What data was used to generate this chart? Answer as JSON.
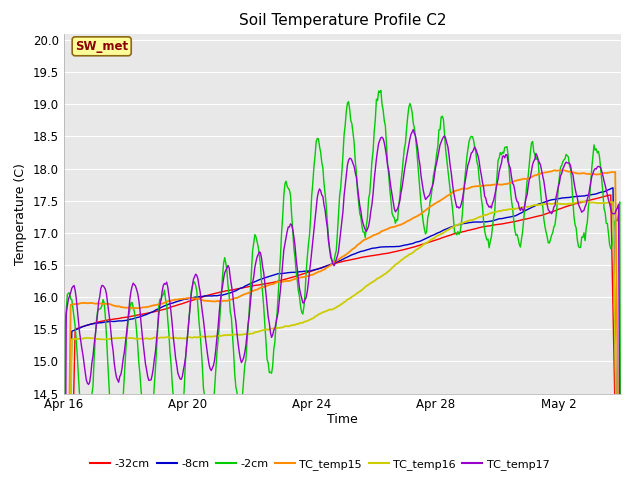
{
  "title": "Soil Temperature Profile C2",
  "xlabel": "Time",
  "ylabel": "Temperature (C)",
  "ylim": [
    14.5,
    20.1
  ],
  "xlim": [
    0,
    18
  ],
  "annotation": "SW_met",
  "annotation_color": "#8B0000",
  "annotation_bg": "#FFFF99",
  "annotation_edge": "#8B6914",
  "fig_bg": "#FFFFFF",
  "plot_bg": "#E8E8E8",
  "grid_color": "#FFFFFF",
  "series_colors": {
    "-32cm": "#FF0000",
    "-8cm": "#0000CC",
    "-2cm": "#00CC00",
    "TC_temp15": "#FF8C00",
    "TC_temp16": "#CCCC00",
    "TC_temp17": "#9900CC"
  },
  "x_tick_labels": [
    "Apr 16",
    "Apr 20",
    "Apr 24",
    "Apr 28",
    "May 2"
  ],
  "x_tick_positions": [
    0,
    4,
    8,
    12,
    16
  ]
}
